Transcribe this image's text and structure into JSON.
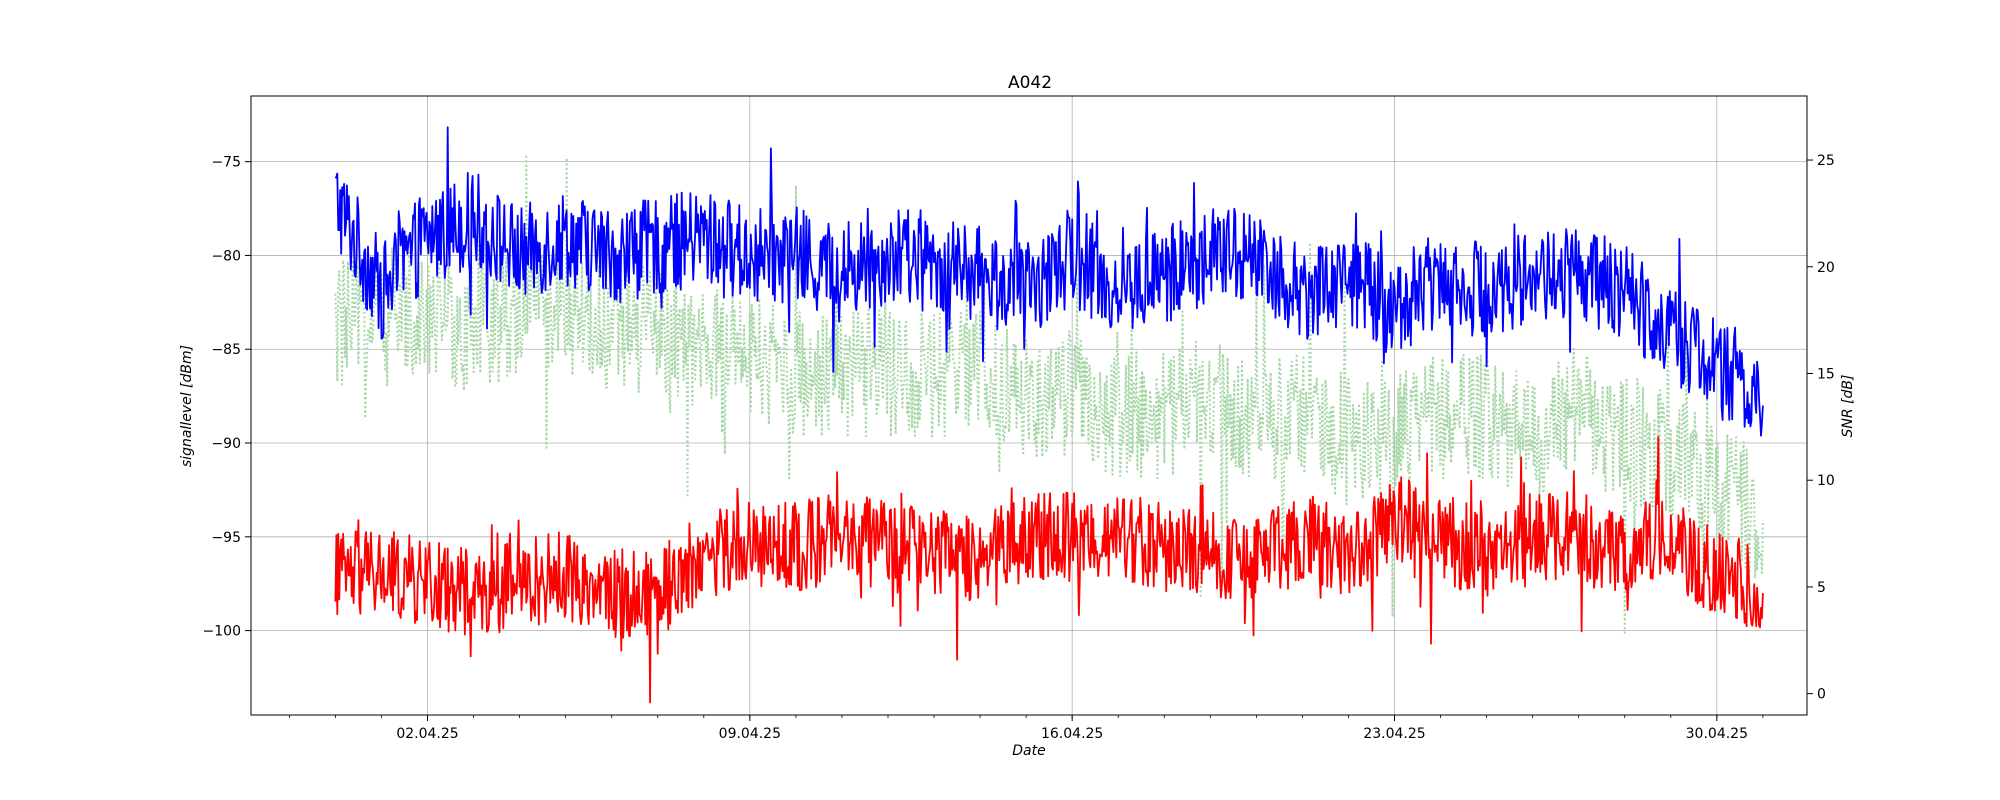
{
  "chart_data": {
    "type": "line",
    "title": "A042",
    "xlabel": "Date",
    "ylabel_left": "signallevel [dBm]",
    "ylabel_right": "SNR [dB]",
    "x_range": [
      "2025-03-29T04:00",
      "2025-05-01T23:00"
    ],
    "ylim_left": [
      -104.5,
      -71.5
    ],
    "ylim_right": [
      -1,
      28
    ],
    "grid": true,
    "x_ticks": [
      {
        "date": "2025-04-02",
        "label": "02.04.25"
      },
      {
        "date": "2025-04-09",
        "label": "09.04.25"
      },
      {
        "date": "2025-04-16",
        "label": "16.04.25"
      },
      {
        "date": "2025-04-23",
        "label": "23.04.25"
      },
      {
        "date": "2025-04-30",
        "label": "30.04.25"
      }
    ],
    "y_ticks_left": [
      -75,
      -80,
      -85,
      -90,
      -95,
      -100
    ],
    "y_ticks_right": [
      25,
      20,
      15,
      10,
      5,
      0
    ],
    "series": [
      {
        "axis": "left",
        "color": "#0000ff",
        "style": "solid",
        "x": [
          "2025-03-31",
          "2025-04-01",
          "2025-04-02",
          "2025-04-03",
          "2025-04-04",
          "2025-04-05",
          "2025-04-06",
          "2025-04-07",
          "2025-04-08",
          "2025-04-09",
          "2025-04-10",
          "2025-04-11",
          "2025-04-12",
          "2025-04-13",
          "2025-04-14",
          "2025-04-15",
          "2025-04-16",
          "2025-04-17",
          "2025-04-18",
          "2025-04-19",
          "2025-04-20",
          "2025-04-21",
          "2025-04-22",
          "2025-04-23",
          "2025-04-24",
          "2025-04-25",
          "2025-04-26",
          "2025-04-27",
          "2025-04-28",
          "2025-04-29",
          "2025-04-30",
          "2025-05-01"
        ],
        "values": [
          -77,
          -82,
          -79,
          -78,
          -80,
          -79,
          -80,
          -79.5,
          -79,
          -80,
          -80,
          -81,
          -80,
          -80.5,
          -81,
          -82,
          -80,
          -82,
          -81,
          -80,
          -80,
          -82,
          -81,
          -83,
          -81,
          -82,
          -81,
          -81,
          -82,
          -84,
          -86,
          -88
        ]
      },
      {
        "axis": "left",
        "color": "#ff0000",
        "style": "solid",
        "x": [
          "2025-03-31",
          "2025-04-01",
          "2025-04-02",
          "2025-04-03",
          "2025-04-04",
          "2025-04-05",
          "2025-04-06",
          "2025-04-07",
          "2025-04-08",
          "2025-04-09",
          "2025-04-10",
          "2025-04-11",
          "2025-04-12",
          "2025-04-13",
          "2025-04-14",
          "2025-04-15",
          "2025-04-16",
          "2025-04-17",
          "2025-04-18",
          "2025-04-19",
          "2025-04-20",
          "2025-04-21",
          "2025-04-22",
          "2025-04-23",
          "2025-04-24",
          "2025-04-25",
          "2025-04-26",
          "2025-04-27",
          "2025-04-28",
          "2025-04-29",
          "2025-04-30",
          "2025-05-01"
        ],
        "values": [
          -97,
          -97,
          -97.5,
          -98,
          -97.5,
          -97,
          -98,
          -98,
          -96,
          -95.5,
          -95.5,
          -95,
          -95.5,
          -96,
          -96,
          -95,
          -95,
          -95,
          -95.5,
          -96,
          -96.5,
          -95,
          -96,
          -94,
          -95,
          -96,
          -95,
          -95,
          -96,
          -95,
          -97,
          -98
        ]
      },
      {
        "axis": "right",
        "color": "#a6d6a6",
        "style": "dotted",
        "x": [
          "2025-03-31",
          "2025-04-01",
          "2025-04-02",
          "2025-04-03",
          "2025-04-04",
          "2025-04-05",
          "2025-04-06",
          "2025-04-07",
          "2025-04-08",
          "2025-04-09",
          "2025-04-10",
          "2025-04-11",
          "2025-04-12",
          "2025-04-13",
          "2025-04-14",
          "2025-04-15",
          "2025-04-16",
          "2025-04-17",
          "2025-04-18",
          "2025-04-19",
          "2025-04-20",
          "2025-04-21",
          "2025-04-22",
          "2025-04-23",
          "2025-04-24",
          "2025-04-25",
          "2025-04-26",
          "2025-04-27",
          "2025-04-28",
          "2025-04-29",
          "2025-04-30",
          "2025-05-01"
        ],
        "values": [
          17,
          18,
          18,
          17,
          18,
          18,
          17,
          17,
          16,
          16,
          15,
          15,
          15,
          15,
          15,
          14,
          14,
          13,
          13,
          14,
          13,
          13,
          12,
          12,
          13,
          13,
          12,
          13,
          12,
          11,
          10,
          8
        ]
      }
    ]
  }
}
